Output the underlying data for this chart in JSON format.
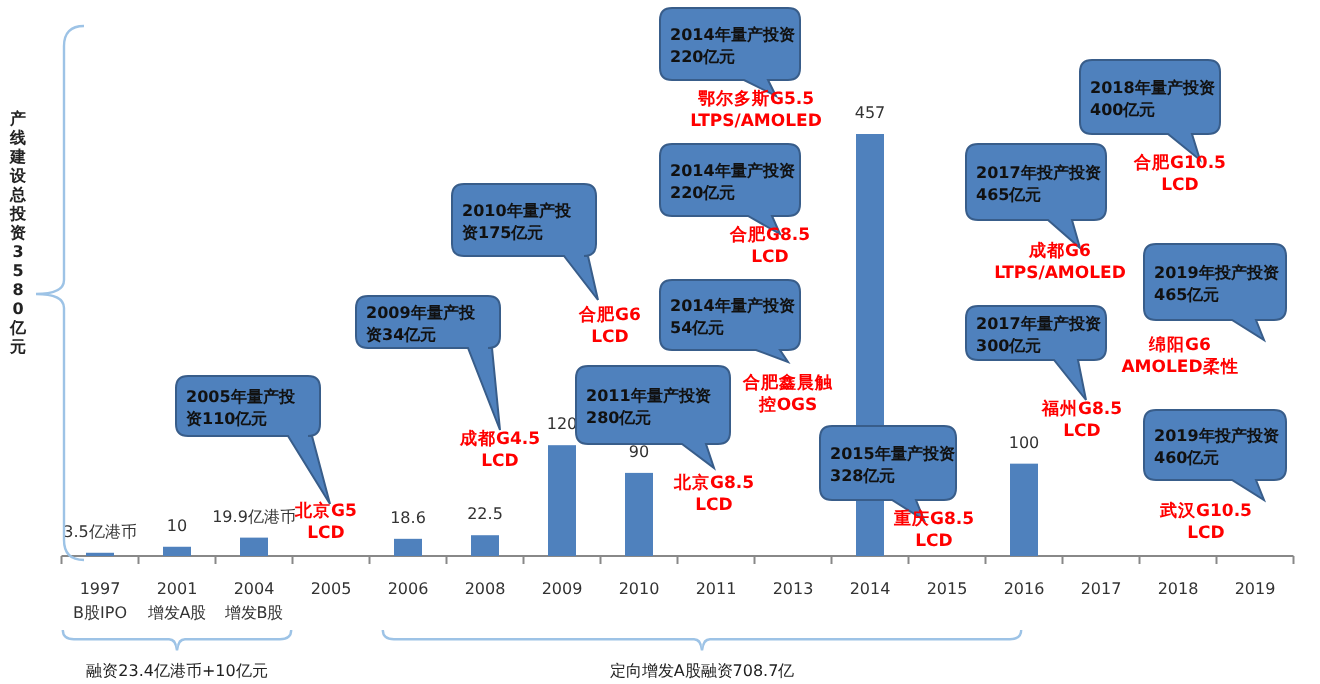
{
  "chart_data": {
    "type": "bar",
    "ylabel": "产线建设总投资3580亿元",
    "categories": [
      "1997",
      "2001",
      "2004",
      "2005",
      "2006",
      "2008",
      "2009",
      "2010",
      "2011",
      "2013",
      "2014",
      "2015",
      "2016",
      "2017",
      "2018",
      "2019"
    ],
    "values": [
      3.5,
      10,
      19.9,
      null,
      18.6,
      22.5,
      120,
      90,
      null,
      null,
      457,
      null,
      100,
      null,
      null,
      null
    ],
    "value_labels": [
      "3.5亿港币",
      "10",
      "19.9亿港币",
      null,
      "18.6",
      "22.5",
      "120",
      "90",
      null,
      null,
      "457",
      null,
      "100",
      null,
      null,
      null
    ],
    "color": "#4f81bd",
    "annotations": [
      "B股IPO",
      "增发A股",
      "增发B股",
      "融资23.4亿港币+10亿元",
      "定向增发A股融资708.7亿",
      "2005年量产投资110亿元",
      "北京G5 LCD",
      "2009年量产投资34亿元",
      "成都G4.5 LCD",
      "2010年量产投资175亿元",
      "合肥G6 LCD",
      "2011年量产投资280亿元",
      "北京G8.5 LCD",
      "2014年量产投资54亿元",
      "合肥鑫晨触控OGS",
      "2014年量产投资220亿元",
      "合肥G8.5 LCD",
      "2014年量产投资220亿元",
      "鄂尔多斯G5.5 LTPS/AMOLED",
      "2015年量产投资328亿元",
      "重庆G8.5 LCD",
      "2017年投产投资465亿元",
      "成都G6 LTPS/AMOLED",
      "2017年量产投资300亿元",
      "福州G8.5 LCD",
      "2018年量产投资400亿元",
      "合肥G10.5 LCD",
      "2019年投产投资465亿元",
      "绵阳G6 AMOLED柔性",
      "2019年投产投资460亿元",
      "武汉G10.5 LCD"
    ]
  }
}
